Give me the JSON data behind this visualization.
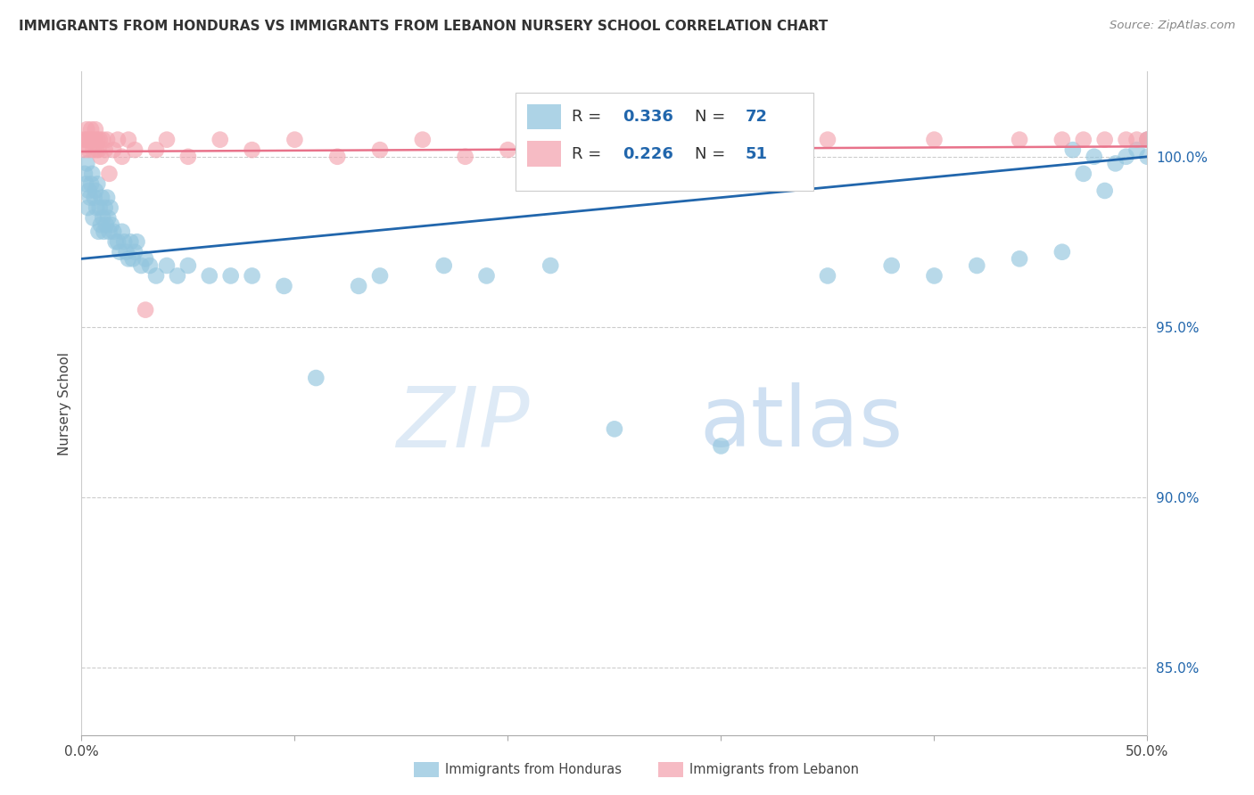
{
  "title": "IMMIGRANTS FROM HONDURAS VS IMMIGRANTS FROM LEBANON NURSERY SCHOOL CORRELATION CHART",
  "source": "Source: ZipAtlas.com",
  "ylabel": "Nursery School",
  "xmin": 0.0,
  "xmax": 50.0,
  "ymin": 83.0,
  "ymax": 102.5,
  "yticks": [
    85.0,
    90.0,
    95.0,
    100.0
  ],
  "ytick_labels": [
    "85.0%",
    "90.0%",
    "95.0%",
    "100.0%"
  ],
  "legend1_r": "0.336",
  "legend1_n": "72",
  "legend2_r": "0.226",
  "legend2_n": "51",
  "legend_bottom1": "Immigrants from Honduras",
  "legend_bottom2": "Immigrants from Lebanon",
  "blue_color": "#92c5de",
  "pink_color": "#f4a5b0",
  "blue_line_color": "#2166ac",
  "pink_line_color": "#e8728a",
  "watermark_zip": "ZIP",
  "watermark_atlas": "atlas",
  "honduras_x": [
    0.15,
    0.2,
    0.25,
    0.3,
    0.35,
    0.4,
    0.45,
    0.5,
    0.55,
    0.6,
    0.65,
    0.7,
    0.75,
    0.8,
    0.85,
    0.9,
    0.95,
    1.0,
    1.05,
    1.1,
    1.15,
    1.2,
    1.25,
    1.3,
    1.35,
    1.4,
    1.5,
    1.6,
    1.7,
    1.8,
    1.9,
    2.0,
    2.1,
    2.2,
    2.3,
    2.4,
    2.5,
    2.6,
    2.8,
    3.0,
    3.2,
    3.5,
    4.0,
    4.5,
    5.0,
    6.0,
    7.0,
    8.0,
    9.5,
    11.0,
    13.0,
    14.0,
    17.0,
    19.0,
    22.0,
    25.0,
    30.0,
    35.0,
    38.0,
    40.0,
    42.0,
    44.0,
    46.0,
    47.0,
    48.0,
    49.0,
    50.0,
    50.0,
    49.5,
    48.5,
    47.5,
    46.5
  ],
  "honduras_y": [
    99.5,
    99.2,
    99.8,
    98.5,
    99.0,
    98.8,
    99.2,
    99.5,
    98.2,
    98.8,
    99.0,
    98.5,
    99.2,
    97.8,
    98.5,
    98.0,
    98.8,
    98.2,
    97.8,
    98.5,
    98.0,
    98.8,
    98.2,
    97.8,
    98.5,
    98.0,
    97.8,
    97.5,
    97.5,
    97.2,
    97.8,
    97.5,
    97.2,
    97.0,
    97.5,
    97.0,
    97.2,
    97.5,
    96.8,
    97.0,
    96.8,
    96.5,
    96.8,
    96.5,
    96.8,
    96.5,
    96.5,
    96.5,
    96.2,
    93.5,
    96.2,
    96.5,
    96.8,
    96.5,
    96.8,
    92.0,
    91.5,
    96.5,
    96.8,
    96.5,
    96.8,
    97.0,
    97.2,
    99.5,
    99.0,
    100.0,
    100.5,
    100.0,
    100.2,
    99.8,
    100.0,
    100.2
  ],
  "lebanon_x": [
    0.1,
    0.15,
    0.2,
    0.25,
    0.3,
    0.35,
    0.4,
    0.45,
    0.5,
    0.55,
    0.6,
    0.65,
    0.7,
    0.75,
    0.8,
    0.85,
    0.9,
    1.0,
    1.1,
    1.2,
    1.3,
    1.5,
    1.7,
    1.9,
    2.2,
    2.5,
    3.0,
    3.5,
    4.0,
    5.0,
    6.5,
    8.0,
    10.0,
    12.0,
    14.0,
    16.0,
    18.0,
    20.0,
    22.0,
    25.0,
    30.0,
    35.0,
    40.0,
    44.0,
    46.0,
    47.0,
    48.0,
    49.0,
    50.0,
    50.0,
    49.5
  ],
  "lebanon_y": [
    100.5,
    100.2,
    100.5,
    100.8,
    100.5,
    100.2,
    100.5,
    100.8,
    100.5,
    100.2,
    100.5,
    100.8,
    100.2,
    100.5,
    100.2,
    100.5,
    100.0,
    100.5,
    100.2,
    100.5,
    99.5,
    100.2,
    100.5,
    100.0,
    100.5,
    100.2,
    95.5,
    100.2,
    100.5,
    100.0,
    100.5,
    100.2,
    100.5,
    100.0,
    100.2,
    100.5,
    100.0,
    100.2,
    100.5,
    100.0,
    100.2,
    100.5,
    100.5,
    100.5,
    100.5,
    100.5,
    100.5,
    100.5,
    100.5,
    100.5,
    100.5
  ]
}
